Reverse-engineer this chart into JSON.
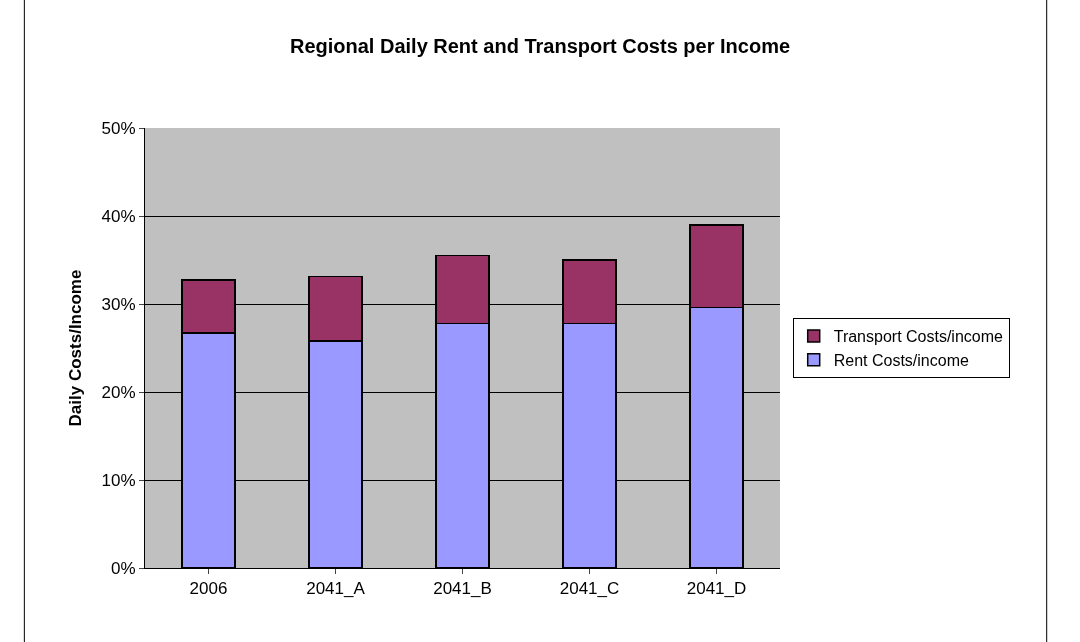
{
  "chart_data": {
    "type": "bar",
    "title": "Regional Daily Rent and Transport Costs per Income",
    "ylabel": "Daily Costs/Income",
    "categories": [
      "2006",
      "2041_A",
      "2041_B",
      "2041_C",
      "2041_D"
    ],
    "stacked": true,
    "series": [
      {
        "name": "Rent Costs/income",
        "color": "#9999ff",
        "values": [
          26.7,
          25.8,
          27.8,
          27.8,
          29.6
        ]
      },
      {
        "name": "Transport Costs/income",
        "color": "#993366",
        "values": [
          6.0,
          7.3,
          7.7,
          7.2,
          9.4
        ]
      }
    ],
    "ylim": [
      0,
      50
    ],
    "yticks": [
      {
        "value": 0,
        "label": "0%"
      },
      {
        "value": 10,
        "label": "10%"
      },
      {
        "value": 20,
        "label": "20%"
      },
      {
        "value": 30,
        "label": "30%"
      },
      {
        "value": 40,
        "label": "40%"
      },
      {
        "value": 50,
        "label": "50%"
      }
    ],
    "grid": "y",
    "legend": "right"
  }
}
